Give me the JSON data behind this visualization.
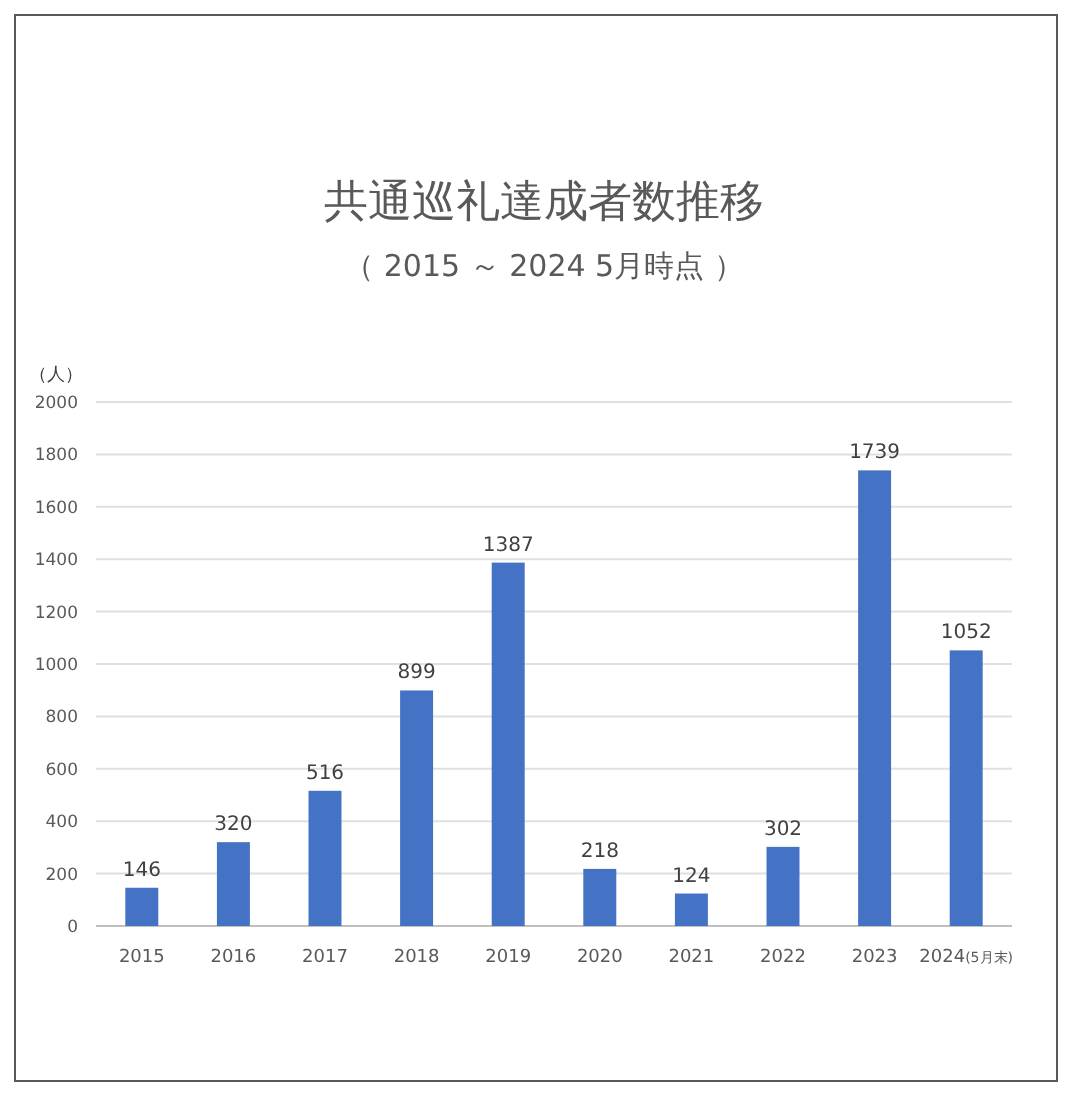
{
  "chart_data": {
    "type": "bar",
    "title": "共通巡礼達成者数推移",
    "subtitle": "（ 2015 ～ 2024 5月時点 ）",
    "ylabel": "（人）",
    "categories": [
      "2015",
      "2016",
      "2017",
      "2018",
      "2019",
      "2020",
      "2021",
      "2022",
      "2023",
      "2024(5月末)"
    ],
    "values": [
      146,
      320,
      516,
      899,
      1387,
      218,
      124,
      302,
      1739,
      1052
    ],
    "color": "#4472c4",
    "ylim": [
      0,
      2000
    ],
    "yticks": [
      0,
      200,
      400,
      600,
      800,
      1000,
      1200,
      1400,
      1600,
      1800,
      2000
    ],
    "grid": "y",
    "data_labels": true
  }
}
